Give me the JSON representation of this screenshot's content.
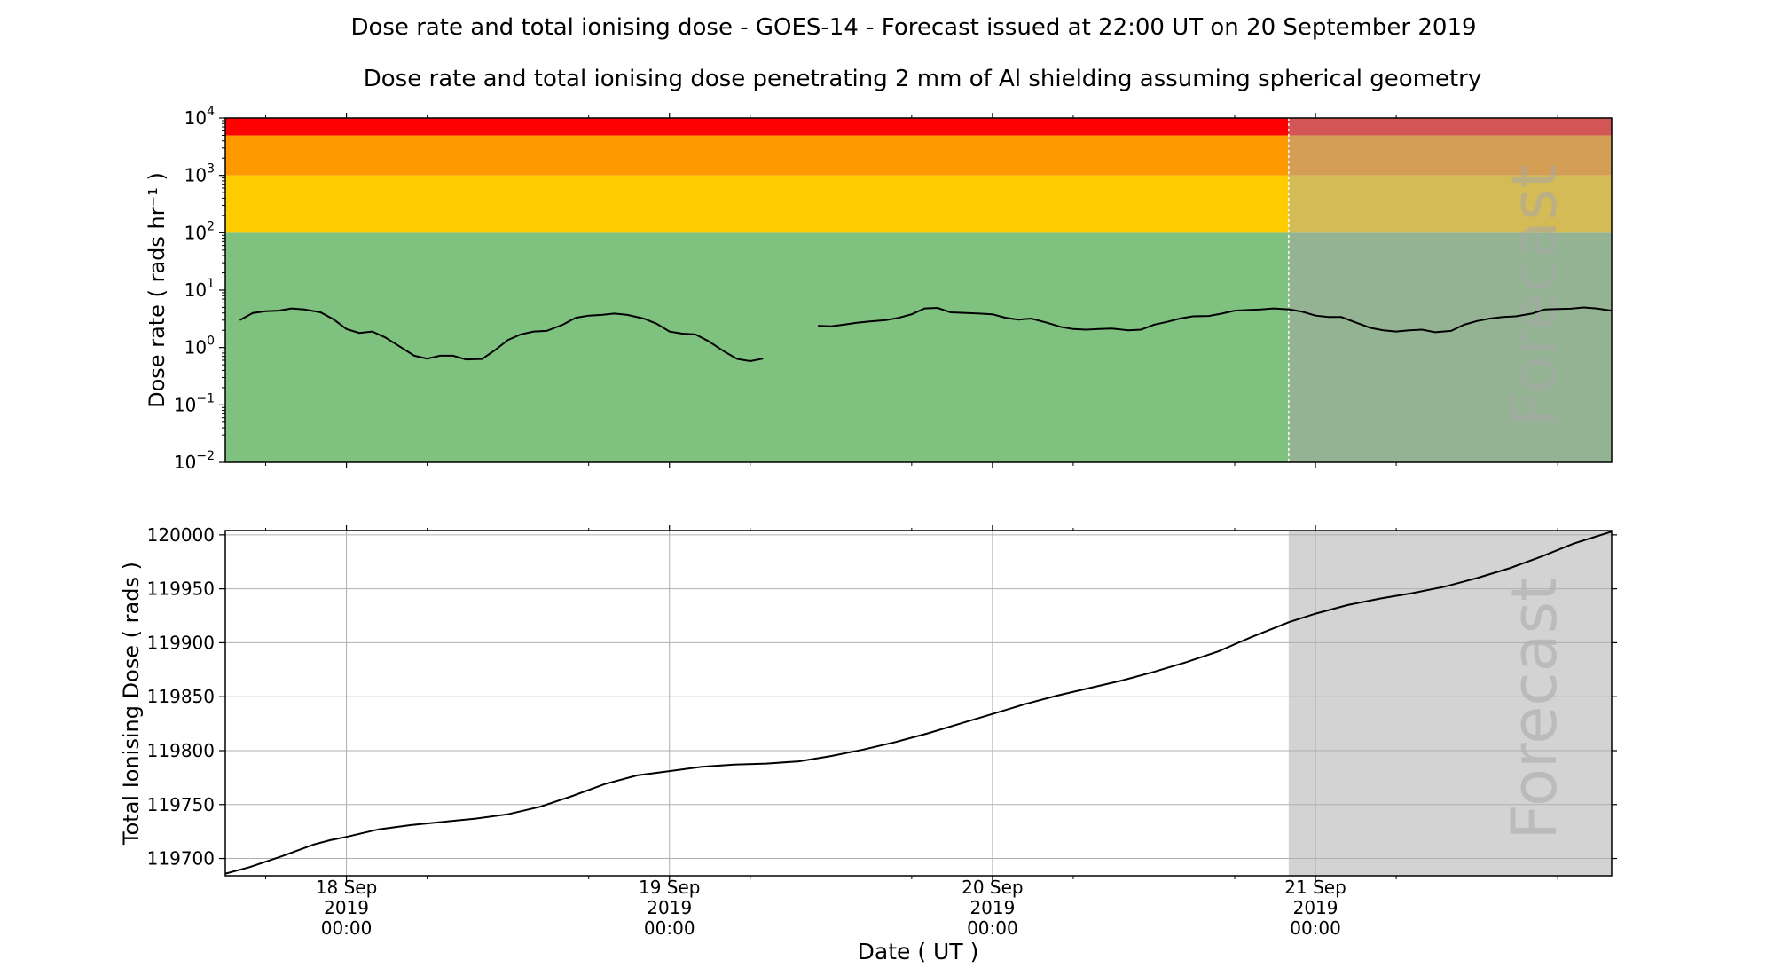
{
  "figure": {
    "title": "Dose rate and total ionising dose - GOES-14 - Forecast issued at 22:00 UT on 20 September 2019",
    "subtitle": "Dose rate and total ionising dose penetrating 2 mm of Al shielding assuming spherical geometry",
    "xlabel": "Date ( UT )",
    "forecast_label": "Forecast",
    "x_ticks": [
      {
        "line1": "18 Sep",
        "line2": "2019",
        "line3": "00:00",
        "day": 0
      },
      {
        "line1": "19 Sep",
        "line2": "2019",
        "line3": "00:00",
        "day": 1
      },
      {
        "line1": "20 Sep",
        "line2": "2019",
        "line3": "00:00",
        "day": 2
      },
      {
        "line1": "21 Sep",
        "line2": "2019",
        "line3": "00:00",
        "day": 3
      }
    ],
    "x_range_days": [
      -0.375,
      3.917
    ],
    "forecast_start_day": 2.917
  },
  "chart_data": [
    {
      "type": "line",
      "ylabel": "Dose rate ( rads hr⁻¹ )",
      "yscale": "log",
      "ylim": [
        0.01,
        10000
      ],
      "y_ticks": [
        {
          "base": "10",
          "exp": "−2",
          "value": 0.01
        },
        {
          "base": "10",
          "exp": "−1",
          "value": 0.1
        },
        {
          "base": "10",
          "exp": "0",
          "value": 1
        },
        {
          "base": "10",
          "exp": "1",
          "value": 10
        },
        {
          "base": "10",
          "exp": "2",
          "value": 100
        },
        {
          "base": "10",
          "exp": "3",
          "value": 1000
        },
        {
          "base": "10",
          "exp": "4",
          "value": 10000
        }
      ],
      "bands": [
        {
          "from": 0.01,
          "to": 100,
          "color": "#7fc17f",
          "forecast_color": "#93b393"
        },
        {
          "from": 100,
          "to": 1000,
          "color": "#ffcc00",
          "forecast_color": "#d4bb55"
        },
        {
          "from": 1000,
          "to": 5000,
          "color": "#ff9900",
          "forecast_color": "#d49e55"
        },
        {
          "from": 5000,
          "to": 10000,
          "color": "#ff0000",
          "forecast_color": "#d45555"
        }
      ],
      "series": [
        {
          "segments": [
            [
              [
                -0.33,
                3.0
              ],
              [
                -0.29,
                4.0
              ],
              [
                -0.25,
                4.3
              ],
              [
                -0.21,
                4.4
              ],
              [
                -0.17,
                4.8
              ],
              [
                -0.13,
                4.6
              ],
              [
                -0.08,
                4.1
              ],
              [
                -0.04,
                3.1
              ],
              [
                0.0,
                2.1
              ],
              [
                0.04,
                1.8
              ],
              [
                0.08,
                1.9
              ],
              [
                0.12,
                1.5
              ],
              [
                0.17,
                1.0
              ],
              [
                0.21,
                0.72
              ],
              [
                0.25,
                0.64
              ],
              [
                0.29,
                0.72
              ],
              [
                0.33,
                0.72
              ],
              [
                0.37,
                0.62
              ],
              [
                0.42,
                0.63
              ],
              [
                0.46,
                0.9
              ],
              [
                0.5,
                1.35
              ],
              [
                0.54,
                1.7
              ],
              [
                0.58,
                1.9
              ],
              [
                0.62,
                1.95
              ],
              [
                0.67,
                2.5
              ],
              [
                0.71,
                3.3
              ],
              [
                0.75,
                3.6
              ],
              [
                0.79,
                3.7
              ],
              [
                0.83,
                3.9
              ],
              [
                0.87,
                3.7
              ],
              [
                0.92,
                3.2
              ],
              [
                0.96,
                2.6
              ],
              [
                1.0,
                1.9
              ],
              [
                1.04,
                1.75
              ],
              [
                1.08,
                1.7
              ],
              [
                1.12,
                1.3
              ],
              [
                1.17,
                0.85
              ],
              [
                1.21,
                0.63
              ],
              [
                1.25,
                0.58
              ],
              [
                1.29,
                0.64
              ]
            ],
            [
              [
                1.46,
                2.4
              ],
              [
                1.5,
                2.35
              ],
              [
                1.54,
                2.5
              ],
              [
                1.58,
                2.7
              ],
              [
                1.62,
                2.85
              ],
              [
                1.67,
                3.0
              ],
              [
                1.71,
                3.3
              ],
              [
                1.75,
                3.8
              ],
              [
                1.79,
                4.8
              ],
              [
                1.83,
                4.9
              ],
              [
                1.87,
                4.1
              ],
              [
                1.92,
                4.0
              ],
              [
                1.96,
                3.9
              ],
              [
                2.0,
                3.8
              ],
              [
                2.04,
                3.3
              ],
              [
                2.08,
                3.05
              ],
              [
                2.12,
                3.2
              ],
              [
                2.17,
                2.7
              ],
              [
                2.21,
                2.3
              ],
              [
                2.25,
                2.1
              ],
              [
                2.29,
                2.05
              ],
              [
                2.33,
                2.1
              ],
              [
                2.37,
                2.15
              ],
              [
                2.42,
                2.0
              ],
              [
                2.46,
                2.05
              ],
              [
                2.5,
                2.5
              ],
              [
                2.54,
                2.8
              ],
              [
                2.58,
                3.2
              ],
              [
                2.62,
                3.5
              ],
              [
                2.67,
                3.55
              ],
              [
                2.71,
                3.9
              ],
              [
                2.75,
                4.4
              ],
              [
                2.79,
                4.5
              ],
              [
                2.83,
                4.6
              ],
              [
                2.87,
                4.8
              ],
              [
                2.92,
                4.6
              ],
              [
                2.96,
                4.2
              ],
              [
                3.0,
                3.6
              ],
              [
                3.04,
                3.4
              ],
              [
                3.08,
                3.4
              ],
              [
                3.12,
                2.8
              ],
              [
                3.17,
                2.2
              ],
              [
                3.21,
                2.0
              ],
              [
                3.25,
                1.9
              ],
              [
                3.29,
                2.0
              ],
              [
                3.33,
                2.05
              ],
              [
                3.37,
                1.85
              ],
              [
                3.42,
                1.95
              ],
              [
                3.46,
                2.5
              ],
              [
                3.5,
                2.9
              ],
              [
                3.54,
                3.2
              ],
              [
                3.58,
                3.4
              ],
              [
                3.62,
                3.5
              ],
              [
                3.67,
                3.9
              ],
              [
                3.71,
                4.6
              ],
              [
                3.75,
                4.7
              ],
              [
                3.79,
                4.75
              ],
              [
                3.83,
                5.0
              ],
              [
                3.87,
                4.8
              ],
              [
                3.917,
                4.4
              ]
            ]
          ]
        }
      ]
    },
    {
      "type": "line",
      "ylabel": "Total Ionising Dose ( rads )",
      "ylim": [
        119684,
        120004
      ],
      "y_ticks": [
        {
          "label": "119700",
          "value": 119700
        },
        {
          "label": "119750",
          "value": 119750
        },
        {
          "label": "119800",
          "value": 119800
        },
        {
          "label": "119850",
          "value": 119850
        },
        {
          "label": "119900",
          "value": 119900
        },
        {
          "label": "119950",
          "value": 119950
        },
        {
          "label": "120000",
          "value": 120000
        }
      ],
      "grid": true,
      "series": [
        {
          "points": [
            [
              -0.375,
              119686
            ],
            [
              -0.3,
              119692
            ],
            [
              -0.2,
              119702
            ],
            [
              -0.1,
              119713
            ],
            [
              -0.05,
              119717
            ],
            [
              0.0,
              119720
            ],
            [
              0.1,
              119727
            ],
            [
              0.2,
              119731
            ],
            [
              0.3,
              119734
            ],
            [
              0.4,
              119737
            ],
            [
              0.5,
              119741
            ],
            [
              0.6,
              119748
            ],
            [
              0.7,
              119758
            ],
            [
              0.8,
              119769
            ],
            [
              0.9,
              119777
            ],
            [
              1.0,
              119781
            ],
            [
              1.1,
              119785
            ],
            [
              1.2,
              119787
            ],
            [
              1.3,
              119788
            ],
            [
              1.4,
              119790
            ],
            [
              1.5,
              119795
            ],
            [
              1.6,
              119801
            ],
            [
              1.7,
              119808
            ],
            [
              1.8,
              119816
            ],
            [
              1.9,
              119825
            ],
            [
              2.0,
              119834
            ],
            [
              2.1,
              119843
            ],
            [
              2.2,
              119851
            ],
            [
              2.3,
              119858
            ],
            [
              2.4,
              119865
            ],
            [
              2.5,
              119873
            ],
            [
              2.6,
              119882
            ],
            [
              2.7,
              119892
            ],
            [
              2.8,
              119905
            ],
            [
              2.917,
              119919
            ],
            [
              3.0,
              119927
            ],
            [
              3.1,
              119935
            ],
            [
              3.2,
              119941
            ],
            [
              3.3,
              119946
            ],
            [
              3.4,
              119952
            ],
            [
              3.5,
              119960
            ],
            [
              3.6,
              119969
            ],
            [
              3.7,
              119980
            ],
            [
              3.8,
              119992
            ],
            [
              3.917,
              120003
            ]
          ]
        }
      ]
    }
  ]
}
